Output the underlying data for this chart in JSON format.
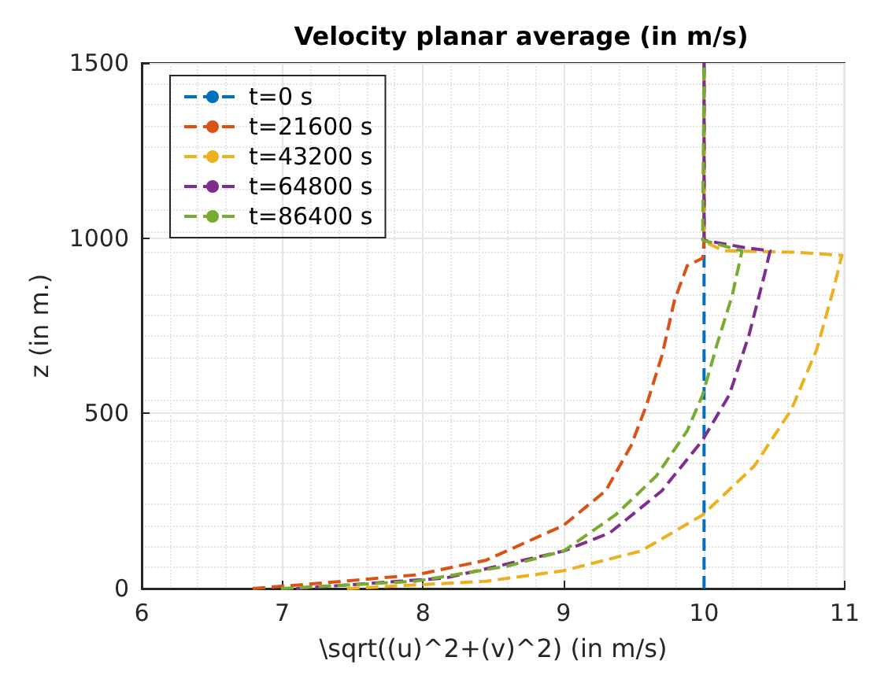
{
  "chart_data": {
    "type": "line",
    "title": "Velocity planar average (in m/s)",
    "xlabel": "\\sqrt((u)^2+(v)^2) (in m/s)",
    "ylabel": "z (in m.)",
    "xlim": [
      6,
      11
    ],
    "xticks": [
      6,
      7,
      8,
      9,
      10,
      11
    ],
    "ylim": [
      0,
      1500
    ],
    "yticks": [
      0,
      500,
      1000,
      1500
    ],
    "grid": true,
    "legend": "top left",
    "line_style": "dashed",
    "marker": "none",
    "series": [
      {
        "name": "t=0 s",
        "color": "#0072bd",
        "x": [
          10,
          10
        ],
        "values": [
          0,
          1500
        ]
      },
      {
        "name": "t=21600 s",
        "color": "#d95319",
        "x": [
          6.79,
          7.32,
          7.95,
          8.45,
          9.0,
          9.3,
          9.48,
          9.59,
          9.7,
          9.79,
          9.88,
          9.99,
          10,
          10
        ],
        "values": [
          0,
          17,
          39,
          81,
          180,
          279,
          407,
          523,
          664,
          823,
          921,
          943,
          990,
          1500
        ]
      },
      {
        "name": "t=43200 s",
        "color": "#edb120",
        "x": [
          7.46,
          8.45,
          9.0,
          9.55,
          9.99,
          10.36,
          10.62,
          10.8,
          10.92,
          10.98,
          10.65,
          10.14,
          10,
          10
        ],
        "values": [
          0,
          21,
          51,
          107,
          210,
          351,
          510,
          681,
          853,
          951,
          960,
          964,
          990,
          1500
        ]
      },
      {
        "name": "t=64800 s",
        "color": "#7e2f8e",
        "x": [
          7.1,
          8.16,
          9.0,
          9.33,
          9.7,
          9.99,
          10.18,
          10.32,
          10.43,
          10.47,
          10.29,
          10,
          10
        ],
        "values": [
          0,
          30,
          107,
          159,
          279,
          424,
          553,
          724,
          896,
          964,
          973,
          994,
          1500
        ]
      },
      {
        "name": "t=86400 s",
        "color": "#77ac30",
        "x": [
          6.99,
          7.95,
          8.6,
          9.0,
          9.37,
          9.66,
          9.88,
          9.99,
          10.09,
          10.2,
          10.27,
          9.99,
          10
        ],
        "values": [
          0,
          21,
          64,
          107,
          210,
          321,
          450,
          553,
          694,
          836,
          964,
          994,
          1500
        ]
      }
    ]
  }
}
